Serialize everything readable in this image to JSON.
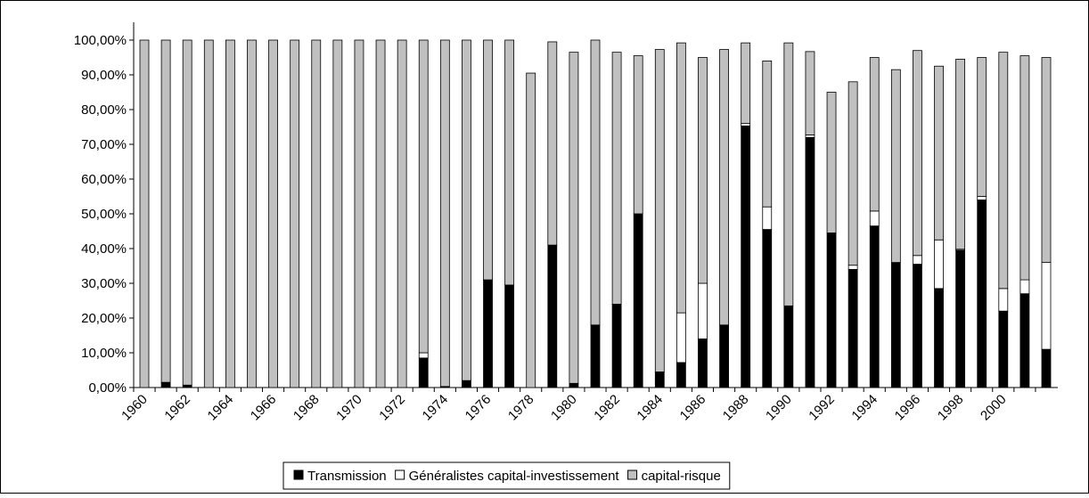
{
  "chart_data": {
    "type": "stacked_bar",
    "categories": [
      "1960",
      null,
      "1962",
      null,
      "1964",
      null,
      "1966",
      null,
      "1968",
      null,
      "1970",
      null,
      "1972",
      null,
      "1974",
      null,
      "1976",
      null,
      "1978",
      null,
      "1980",
      null,
      "1982",
      null,
      "1984",
      null,
      "1986",
      null,
      "1988",
      null,
      "1990",
      null,
      "1992",
      null,
      "1994",
      null,
      "1996",
      null,
      "1998",
      null,
      "2000",
      null,
      null
    ],
    "series": [
      {
        "name": "Transmission",
        "color": "#000000",
        "values": [
          0,
          1.5,
          0.7,
          0,
          0,
          0,
          0,
          0,
          0,
          0,
          0,
          0,
          0,
          8.5,
          0.3,
          2,
          31,
          29.5,
          0,
          41,
          1.2,
          18,
          24,
          50,
          4.5,
          7.2,
          14,
          18,
          75.3,
          45.5,
          23.5,
          72,
          44.5,
          34,
          46.5,
          36,
          35.5,
          28.5,
          39.5,
          54,
          22,
          27,
          11
        ]
      },
      {
        "name": "Généralistes capital-investissement",
        "color": "#ffffff",
        "values": [
          0,
          0,
          0,
          0,
          0,
          0,
          0,
          0,
          0,
          0,
          0,
          0,
          0,
          1.5,
          0,
          0,
          0,
          0,
          0,
          0,
          0,
          0,
          0,
          0,
          0,
          14.3,
          16,
          0,
          0.7,
          6.5,
          0,
          0.7,
          0,
          1.2,
          4.3,
          0,
          2.5,
          14,
          0.3,
          1,
          6.5,
          4,
          25
        ]
      },
      {
        "name": "capital-risque",
        "color": "#c0c0c0",
        "values": [
          100,
          98.5,
          99.3,
          100,
          100,
          100,
          100,
          100,
          100,
          100,
          100,
          100,
          100,
          90,
          99.7,
          98,
          69,
          70.5,
          90.5,
          58.5,
          95.3,
          82,
          72.5,
          45.5,
          92.8,
          77.7,
          65,
          79.3,
          23.2,
          42,
          75.7,
          24,
          40.5,
          52.8,
          44.2,
          55.5,
          59,
          50,
          54.7,
          40,
          68,
          64.5,
          59
        ]
      }
    ],
    "ylim": [
      0,
      100
    ],
    "yticks": [
      {
        "value": 0,
        "label": "0,00%"
      },
      {
        "value": 10,
        "label": "10,00%"
      },
      {
        "value": 20,
        "label": "20,00%"
      },
      {
        "value": 30,
        "label": "30,00%"
      },
      {
        "value": 40,
        "label": "40,00%"
      },
      {
        "value": 50,
        "label": "50,00%"
      },
      {
        "value": 60,
        "label": "60,00%"
      },
      {
        "value": 70,
        "label": "70,00%"
      },
      {
        "value": 80,
        "label": "80,00%"
      },
      {
        "value": 90,
        "label": "90,00%"
      },
      {
        "value": 100,
        "label": "100,00%"
      }
    ],
    "legend": "bottom",
    "grid": false
  }
}
